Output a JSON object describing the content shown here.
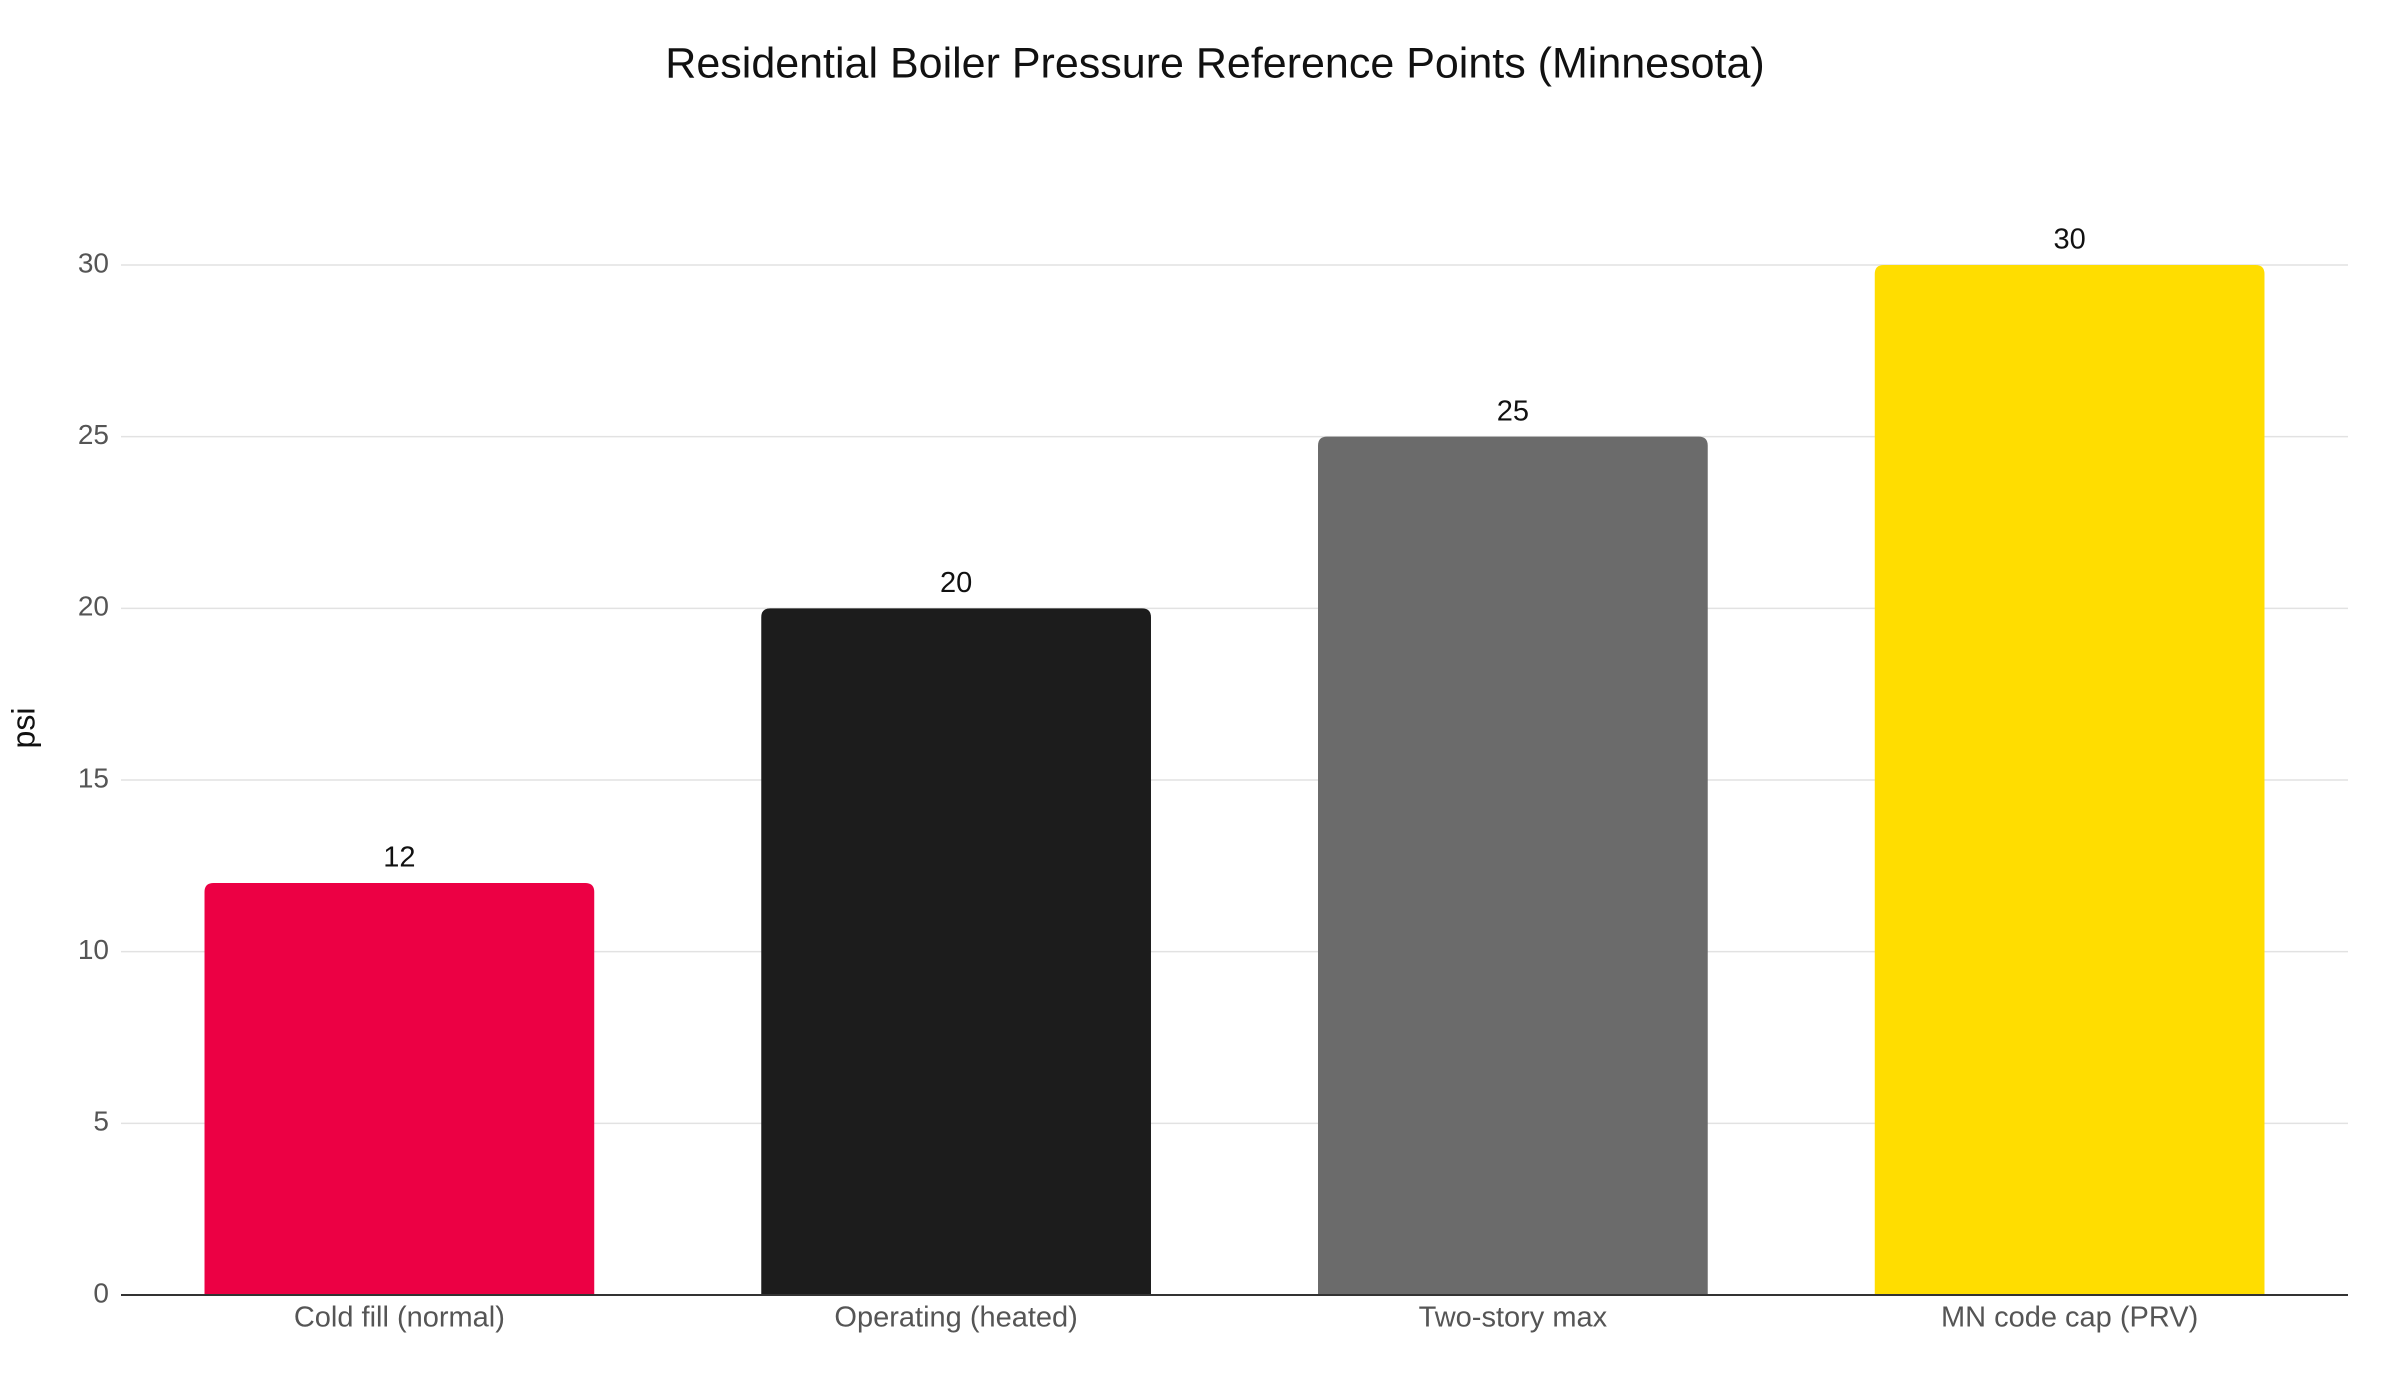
{
  "chart_data": {
    "type": "bar",
    "title": "Residential Boiler Pressure Reference Points (Minnesota)",
    "y_label": "psi",
    "categories": [
      "Cold fill (normal)",
      "Operating (heated)",
      "Two-story max",
      "MN code cap (PRV)"
    ],
    "values": [
      12,
      20,
      25,
      30
    ],
    "colors": [
      "#ec0044",
      "#1c1c1c",
      "#6b6b6b",
      "#ffdd00"
    ],
    "ylim": [
      0,
      30
    ],
    "yticks": [
      0,
      5,
      10,
      15,
      20,
      25,
      30
    ],
    "grid": true
  }
}
